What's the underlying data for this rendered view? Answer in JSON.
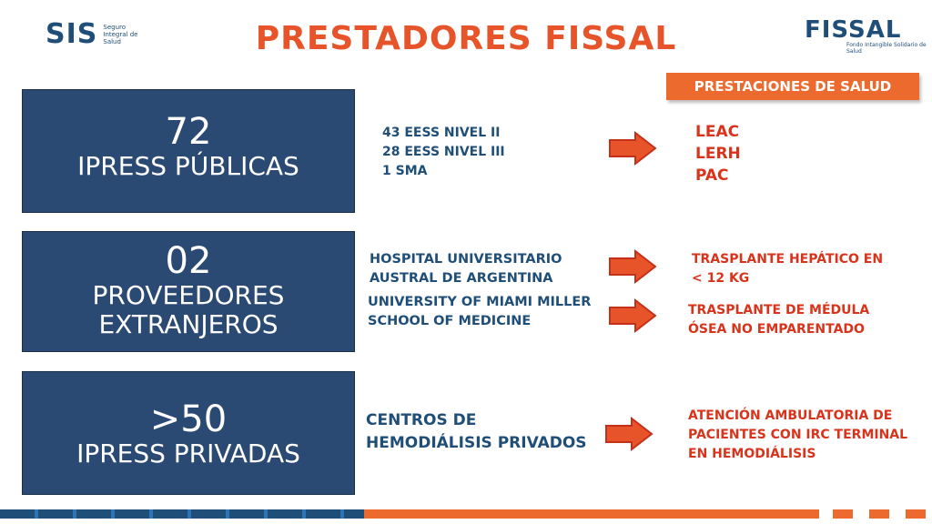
{
  "header": {
    "title": "PRESTADORES FISSAL",
    "sis_logo": "SIS",
    "sis_subtitle": "Seguro Integral de Salud",
    "fissal_logo": "FISSAL",
    "fissal_subtitle": "Fondo Intangible Solidario de Salud"
  },
  "section_header": "PRESTACIONES DE SALUD",
  "rows": [
    {
      "box_number": "72",
      "box_label": "IPRESS PÚBLICAS",
      "details": [
        "43 EESS NIVEL II",
        "28 EESS NIVEL III",
        "1 SMA"
      ],
      "services": [
        "LEAC",
        "LERH",
        "PAC"
      ]
    },
    {
      "box_number": "02",
      "box_label_1": "PROVEEDORES",
      "box_label_2": "EXTRANJEROS",
      "details_a": [
        "HOSPITAL UNIVERSITARIO",
        "AUSTRAL DE ARGENTINA"
      ],
      "details_b": [
        "UNIVERSITY OF MIAMI MILLER",
        "SCHOOL OF MEDICINE"
      ],
      "services_a": [
        "TRASPLANTE HEPÁTICO EN",
        "< 12 KG"
      ],
      "services_b": [
        "TRASPLANTE DE MÉDULA",
        "ÓSEA NO EMPARENTADO"
      ]
    },
    {
      "box_number": ">50",
      "box_label": "IPRESS PRIVADAS",
      "details": [
        "CENTROS DE",
        "HEMODIÁLISIS PRIVADOS"
      ],
      "services": [
        "ATENCIÓN AMBULATORIA DE",
        "PACIENTES CON IRC TERMINAL",
        "EN HEMODIÁLISIS"
      ]
    }
  ],
  "colors": {
    "accent_orange": "#e8542a",
    "box_blue": "#2b4a73",
    "text_blue": "#1f4e79",
    "service_red": "#d9331b",
    "footer_light_blue": "#2f74b5"
  },
  "icons": [
    "right-arrow-icon"
  ]
}
